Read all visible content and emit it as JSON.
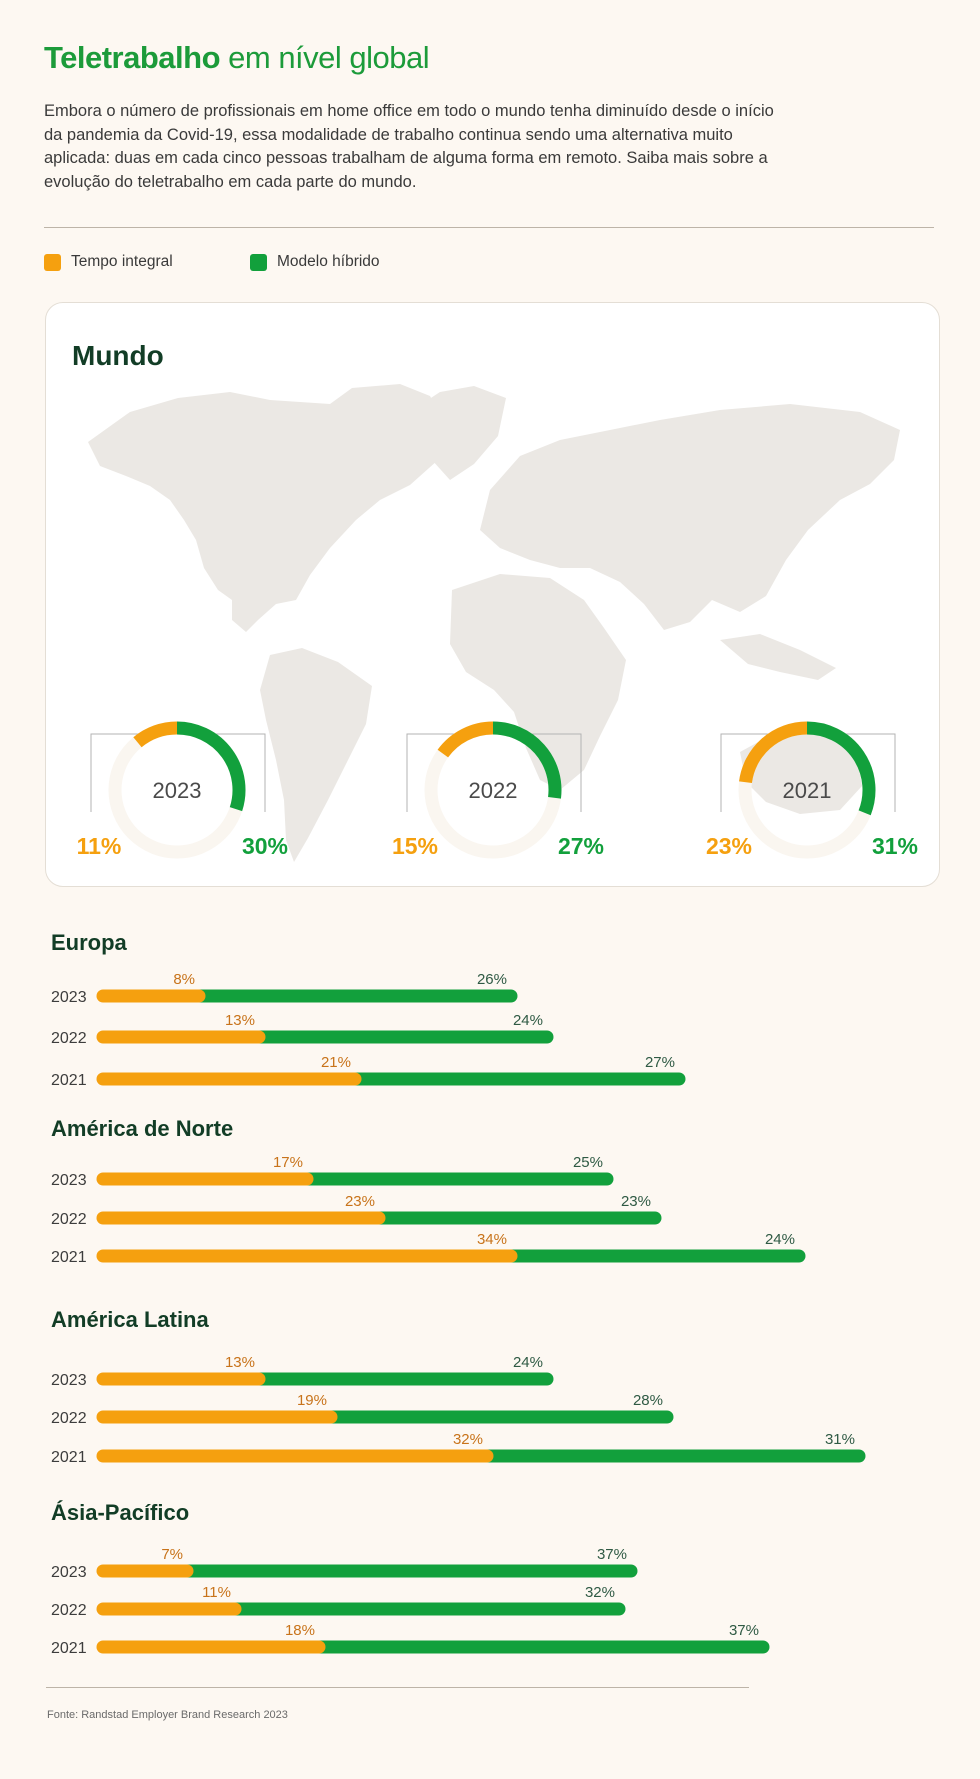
{
  "header": {
    "title_bold": "Teletrabalho",
    "title_light": " em nível global",
    "intro": "Embora o número de profissionais em home office em todo o mundo tenha diminuído desde o início da pandemia da Covid-19, essa modalidade de trabalho continua sendo uma alternativa muito aplicada: duas em cada cinco pessoas trabalham de alguma forma em remoto. Saiba mais sobre a evolução do teletrabalho em cada parte do mundo."
  },
  "legend": {
    "full_time": "Tempo integral",
    "hybrid": "Modelo híbrido"
  },
  "colors": {
    "full_time": "#f5a00f",
    "hybrid": "#12a03c",
    "full_time_label": "#c8731a",
    "hybrid_label": "#2f5a44",
    "map": "#ebe8e4",
    "title_dark": "#123d26"
  },
  "world": {
    "title": "Mundo",
    "donuts": [
      {
        "year": "2023",
        "full_time": "11%",
        "hybrid": "30%",
        "full_time_value": 11,
        "hybrid_value": 30
      },
      {
        "year": "2022",
        "full_time": "15%",
        "hybrid": "27%",
        "full_time_value": 15,
        "hybrid_value": 27
      },
      {
        "year": "2021",
        "full_time": "23%",
        "hybrid": "31%",
        "full_time_value": 23,
        "hybrid_value": 31
      }
    ]
  },
  "chart_data": {
    "type": "bar",
    "orientation": "horizontal",
    "stacked": true,
    "series_names": [
      "Tempo integral",
      "Modelo híbrido"
    ],
    "regions": [
      {
        "name": "Europa",
        "rows": [
          {
            "year": "2023",
            "full_time": 8,
            "hybrid": 26
          },
          {
            "year": "2022",
            "full_time": 13,
            "hybrid": 24
          },
          {
            "year": "2021",
            "full_time": 21,
            "hybrid": 27
          }
        ]
      },
      {
        "name": "América de Norte",
        "rows": [
          {
            "year": "2023",
            "full_time": 17,
            "hybrid": 25
          },
          {
            "year": "2022",
            "full_time": 23,
            "hybrid": 23
          },
          {
            "year": "2021",
            "full_time": 34,
            "hybrid": 24
          }
        ]
      },
      {
        "name": "América Latina",
        "rows": [
          {
            "year": "2023",
            "full_time": 13,
            "hybrid": 24
          },
          {
            "year": "2022",
            "full_time": 19,
            "hybrid": 28
          },
          {
            "year": "2021",
            "full_time": 32,
            "hybrid": 31
          }
        ]
      },
      {
        "name": "Ásia-Pacífico",
        "rows": [
          {
            "year": "2023",
            "full_time": 7,
            "hybrid": 37
          },
          {
            "year": "2022",
            "full_time": 11,
            "hybrid": 32
          },
          {
            "year": "2021",
            "full_time": 18,
            "hybrid": 37
          }
        ]
      }
    ]
  },
  "footer": {
    "source": "Fonte: Randstad Employer Brand Research 2023"
  }
}
